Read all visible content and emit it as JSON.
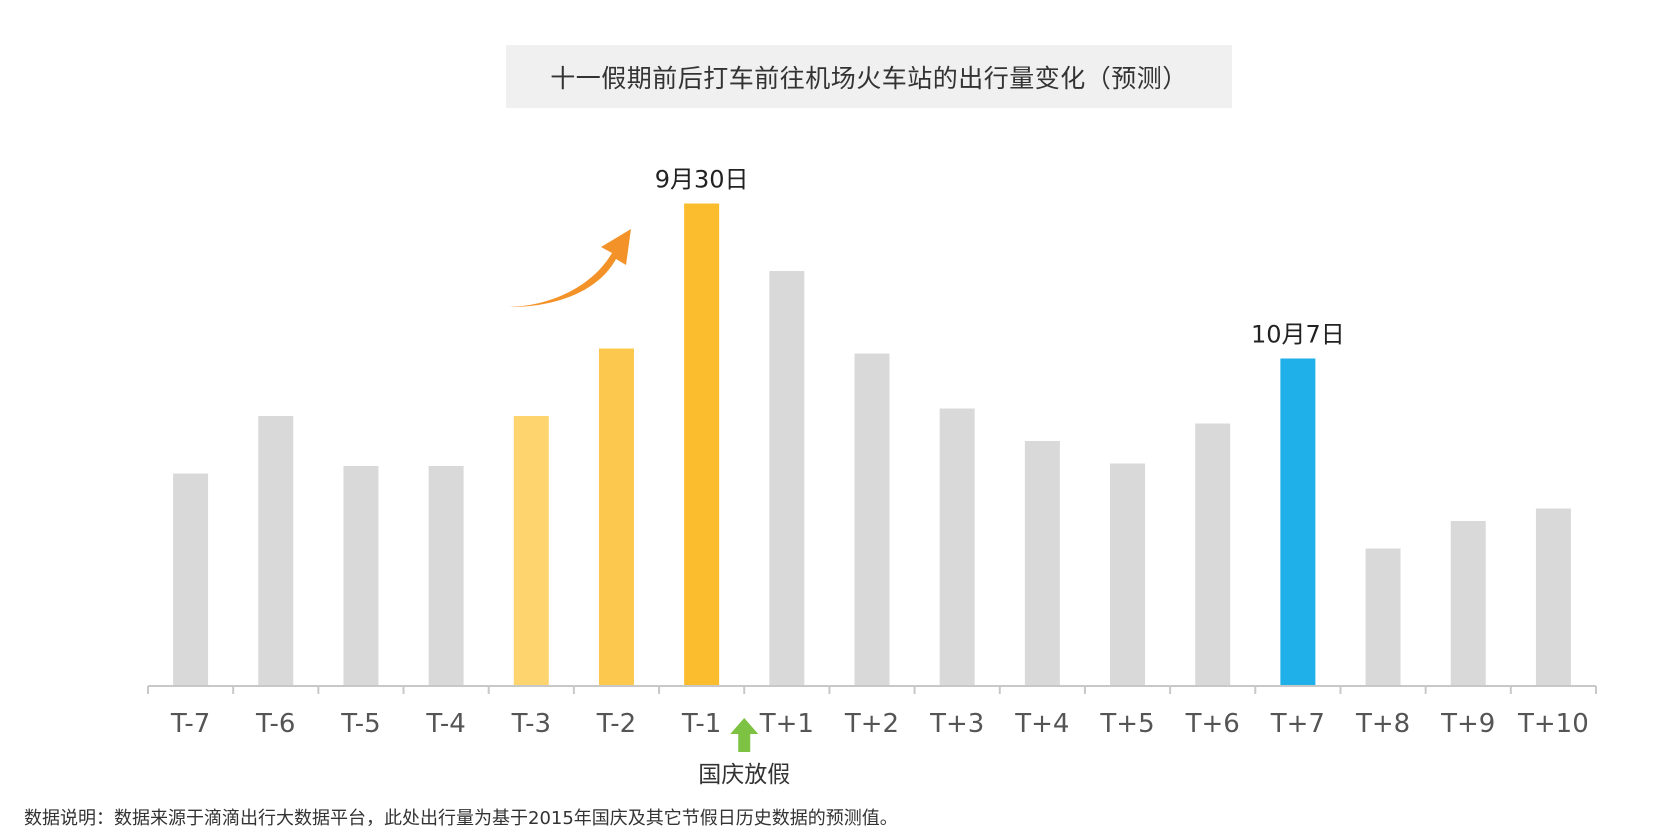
{
  "chart_data": {
    "type": "bar",
    "title": "十一假期前后打车前往机场火车站的出行量变化（预测）",
    "categories": [
      "T-7",
      "T-6",
      "T-5",
      "T-4",
      "T-3",
      "T-2",
      "T-1",
      "T+1",
      "T+2",
      "T+3",
      "T+4",
      "T+5",
      "T+6",
      "T+7",
      "T+8",
      "T+9",
      "T+10"
    ],
    "values": [
      42.5,
      54,
      44,
      44,
      54,
      67.5,
      96.5,
      83,
      66.5,
      55.5,
      49,
      44.5,
      52.5,
      65.5,
      27.5,
      33,
      35.5
    ],
    "ylim": [
      0,
      100
    ],
    "colors": [
      "#d9d9d9",
      "#d9d9d9",
      "#d9d9d9",
      "#d9d9d9",
      "#fdd46e",
      "#fcc94e",
      "#fbbc2e",
      "#d9d9d9",
      "#d9d9d9",
      "#d9d9d9",
      "#d9d9d9",
      "#d9d9d9",
      "#d9d9d9",
      "#1fb0ea",
      "#d9d9d9",
      "#d9d9d9",
      "#d9d9d9"
    ],
    "annotations": [
      {
        "label": "9月30日",
        "category": "T-1"
      },
      {
        "label": "10月7日",
        "category": "T+7"
      }
    ],
    "holiday_marker": {
      "label": "国庆放假",
      "color": "#7dc242"
    },
    "trend_arrow_color": "#f4922a",
    "axis_color": "#c8c8c8",
    "tick_label_color": "#555555"
  },
  "footnote": "数据说明：数据来源于滴滴出行大数据平台，此处出行量为基于2015年国庆及其它节假日历史数据的预测值。"
}
